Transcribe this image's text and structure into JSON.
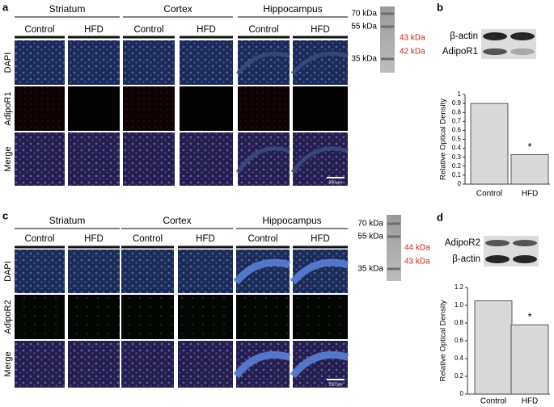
{
  "figure": {
    "panels": [
      {
        "label": "a",
        "regions": [
          "Striatum",
          "Cortex",
          "Hippocampus"
        ],
        "conditions": [
          "Control",
          "HFD"
        ],
        "stains": [
          "DAPI",
          "AdipoR1",
          "Merge"
        ],
        "scale_bar": "200 μm",
        "ladder": {
          "markers": [
            "70 kDa",
            "55 kDa",
            "35 kDa"
          ],
          "bands": [
            "43 kDa",
            "42 kDa"
          ]
        }
      },
      {
        "label": "b",
        "blot_rows": [
          "β-actin",
          "AdipoR1"
        ]
      },
      {
        "label": "c",
        "regions": [
          "Striatum",
          "Cortex",
          "Hippocampus"
        ],
        "conditions": [
          "Control",
          "HFD"
        ],
        "stains": [
          "DAPI",
          "AdipoR2",
          "Merge"
        ],
        "scale_bar": "200 μm",
        "ladder": {
          "markers": [
            "70 kDa",
            "55 kDa",
            "35 kDa"
          ],
          "bands": [
            "44 kDa",
            "43 kDa"
          ]
        }
      },
      {
        "label": "d",
        "blot_rows": [
          "AdipoR2",
          "β-actin"
        ]
      }
    ]
  },
  "chart_data": [
    {
      "type": "bar",
      "y_label": "Relative Optical Density",
      "categories": [
        "Control",
        "HFD"
      ],
      "values": [
        0.9,
        0.33
      ],
      "color": "#d9d9d9",
      "annotation": "*",
      "ylim": [
        0,
        1
      ],
      "yticks": [
        0,
        0.1,
        0.2,
        0.3,
        0.4,
        0.5,
        0.6,
        0.7,
        0.8,
        0.9,
        1
      ]
    },
    {
      "type": "bar",
      "y_label": "Relative Optical Density",
      "categories": [
        "Control",
        "HFD"
      ],
      "values": [
        1.05,
        0.78
      ],
      "color": "#d9d9d9",
      "annotation": "*",
      "ylim": [
        0,
        1.2
      ],
      "yticks": [
        0,
        0.2,
        0.4,
        0.6,
        0.8,
        {
          "value": 1,
          "label": "1.0"
        },
        1.2
      ]
    }
  ]
}
